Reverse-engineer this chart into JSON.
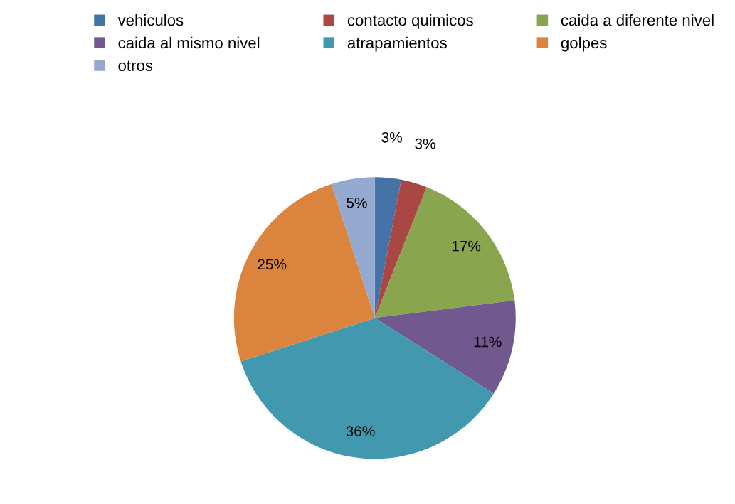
{
  "chart_data": {
    "type": "pie",
    "categories": [
      "vehiculos",
      "contacto quimicos",
      "caida a diferente nivel",
      "caida al mismo nivel",
      "atrapamientos",
      "golpes",
      "otros"
    ],
    "values": [
      3,
      3,
      17,
      11,
      36,
      25,
      5
    ],
    "colors": [
      "#4572a7",
      "#aa4643",
      "#89a54e",
      "#71588f",
      "#4198af",
      "#db843d",
      "#93a9cf"
    ],
    "value_labels": [
      "3%",
      "3%",
      "17%",
      "11%",
      "36%",
      "25%",
      "5%"
    ],
    "legend": "top"
  }
}
